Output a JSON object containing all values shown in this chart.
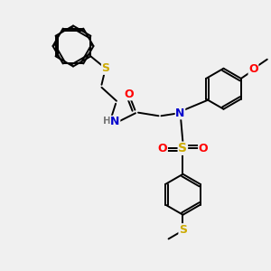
{
  "background_color": "#f0f0f0",
  "bond_color": "#000000",
  "atom_colors": {
    "N": "#0000cc",
    "O": "#ff0000",
    "S": "#ccaa00",
    "H": "#777777",
    "C": "#000000"
  },
  "figsize": [
    3.0,
    3.0
  ],
  "dpi": 100,
  "xlim": [
    0,
    10
  ],
  "ylim": [
    0,
    10
  ]
}
